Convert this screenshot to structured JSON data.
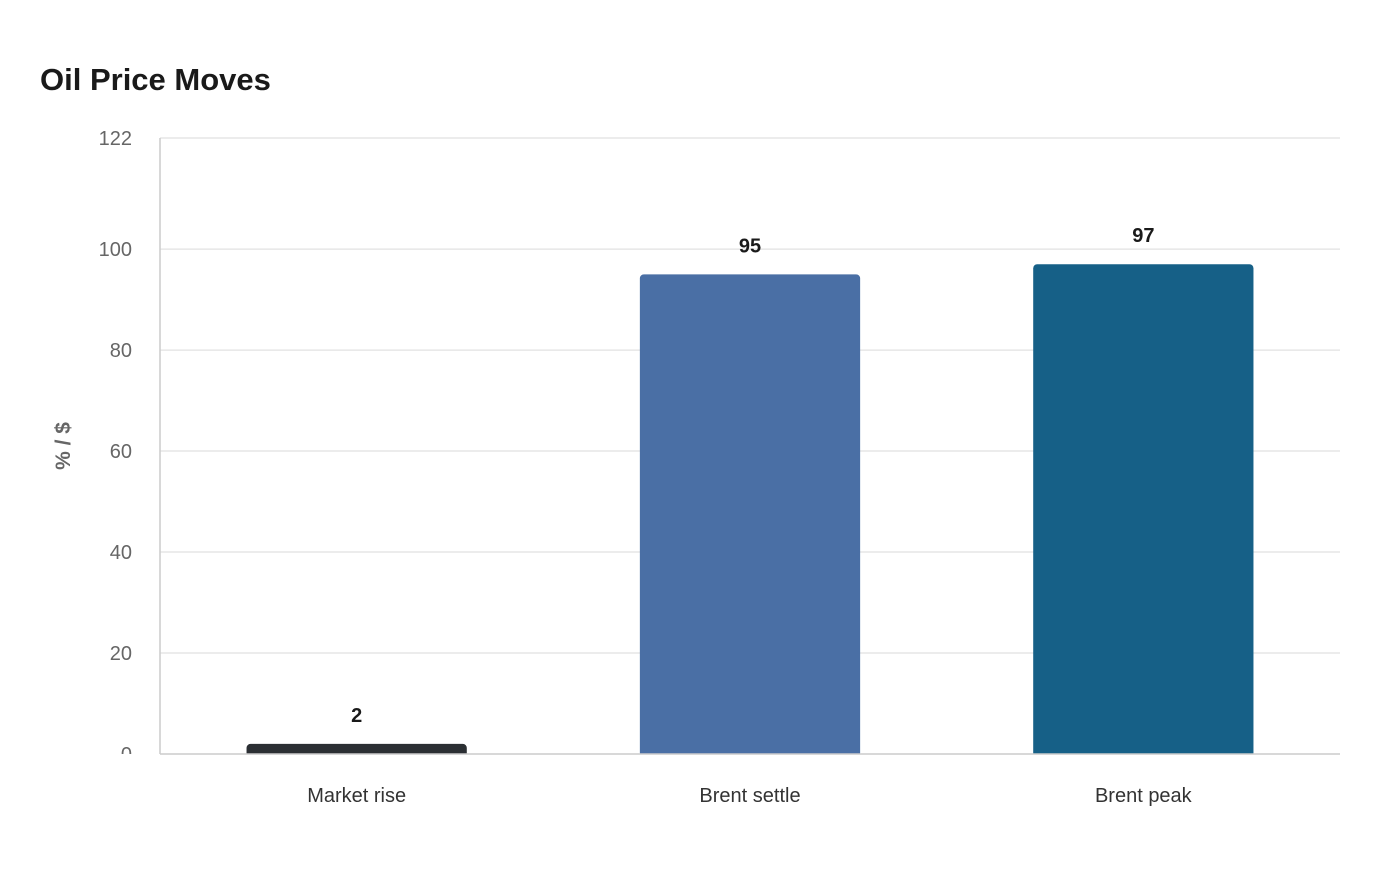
{
  "chart_data": {
    "type": "bar",
    "title": "Oil Price Moves",
    "xlabel": "",
    "ylabel": "% / $",
    "categories": [
      "Market rise",
      "Brent settle",
      "Brent peak"
    ],
    "values": [
      2,
      95,
      97
    ],
    "data_labels": [
      "2",
      "95",
      "97"
    ],
    "colors": [
      "#2b2f33",
      "#4a6fa5",
      "#166087"
    ],
    "ylim": [
      0,
      122
    ],
    "yticks": [
      0,
      20,
      40,
      60,
      80,
      100,
      122
    ],
    "grid": true,
    "legend": "none"
  }
}
